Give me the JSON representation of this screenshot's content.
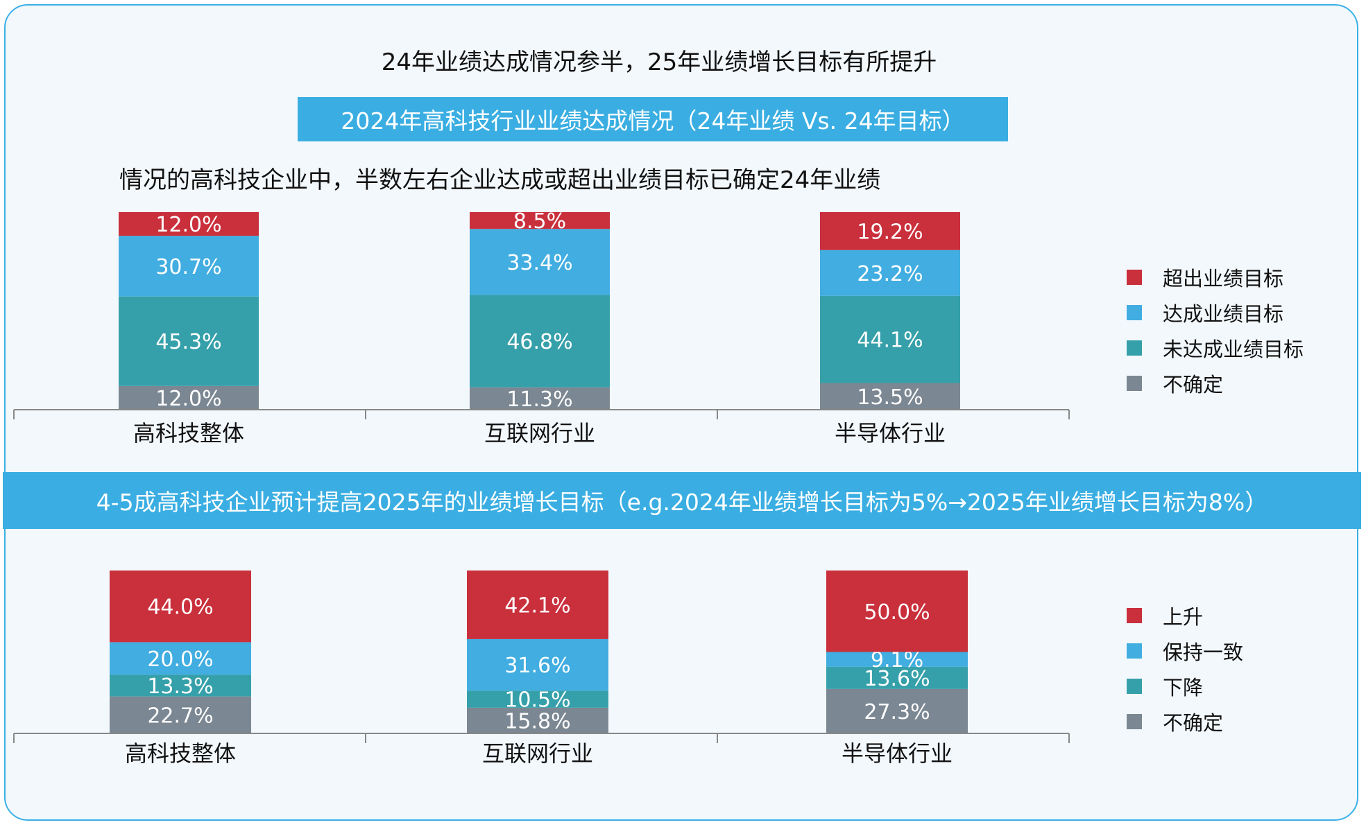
{
  "headline": "24年业绩达成情况参半，25年业绩增长目标有所提升",
  "banner1": "2024年高科技行业业绩达成情况（24年业绩 Vs. 24年目标）",
  "subhead": "情况的高科技企业中，半数左右企业达成或超出业绩目标已确定24年业绩",
  "banner2": "4-5成高科技企业预计提高2025年的业绩增长目标（e.g.2024年业绩增长目标为5%→2025年业绩增长目标为8%）",
  "colors": {
    "red": "#c9303c",
    "blue": "#41ade0",
    "teal": "#36a0aa",
    "gray": "#7b8792"
  },
  "chart_data": [
    {
      "type": "bar",
      "stacked": true,
      "categories": [
        "高科技整体",
        "互联网行业",
        "半导体行业"
      ],
      "series": [
        {
          "name": "不确定",
          "color": "#7b8792",
          "values": [
            12.0,
            11.3,
            13.5
          ],
          "labels": [
            "12.0%",
            "11.3%",
            "13.5%"
          ]
        },
        {
          "name": "未达成业绩目标",
          "color": "#36a0aa",
          "values": [
            45.3,
            46.8,
            44.1
          ],
          "labels": [
            "45.3%",
            "46.8%",
            "44.1%"
          ]
        },
        {
          "name": "达成业绩目标",
          "color": "#41ade0",
          "values": [
            30.7,
            33.4,
            23.2
          ],
          "labels": [
            "30.7%",
            "33.4%",
            "23.2%"
          ]
        },
        {
          "name": "超出业绩目标",
          "color": "#c9303c",
          "values": [
            12.0,
            8.5,
            19.2
          ],
          "labels": [
            "12.0%",
            "8.5%",
            "19.2%"
          ]
        }
      ],
      "legend": [
        "超出业绩目标",
        "达成业绩目标",
        "未达成业绩目标",
        "不确定"
      ],
      "legend_position": "right"
    },
    {
      "type": "bar",
      "stacked": true,
      "categories": [
        "高科技整体",
        "互联网行业",
        "半导体行业"
      ],
      "series": [
        {
          "name": "不确定",
          "color": "#7b8792",
          "values": [
            22.7,
            15.8,
            27.3
          ],
          "labels": [
            "22.7%",
            "15.8%",
            "27.3%"
          ]
        },
        {
          "name": "下降",
          "color": "#36a0aa",
          "values": [
            13.3,
            10.5,
            13.6
          ],
          "labels": [
            "13.3%",
            "10.5%",
            "13.6%"
          ]
        },
        {
          "name": "保持一致",
          "color": "#41ade0",
          "values": [
            20.0,
            31.6,
            9.1
          ],
          "labels": [
            "20.0%",
            "31.6%",
            "9.1%"
          ]
        },
        {
          "name": "上升",
          "color": "#c9303c",
          "values": [
            44.0,
            42.1,
            50.0
          ],
          "labels": [
            "44.0%",
            "42.1%",
            "50.0%"
          ]
        }
      ],
      "legend": [
        "上升",
        "保持一致",
        "下降",
        "不确定"
      ],
      "legend_position": "right"
    }
  ]
}
